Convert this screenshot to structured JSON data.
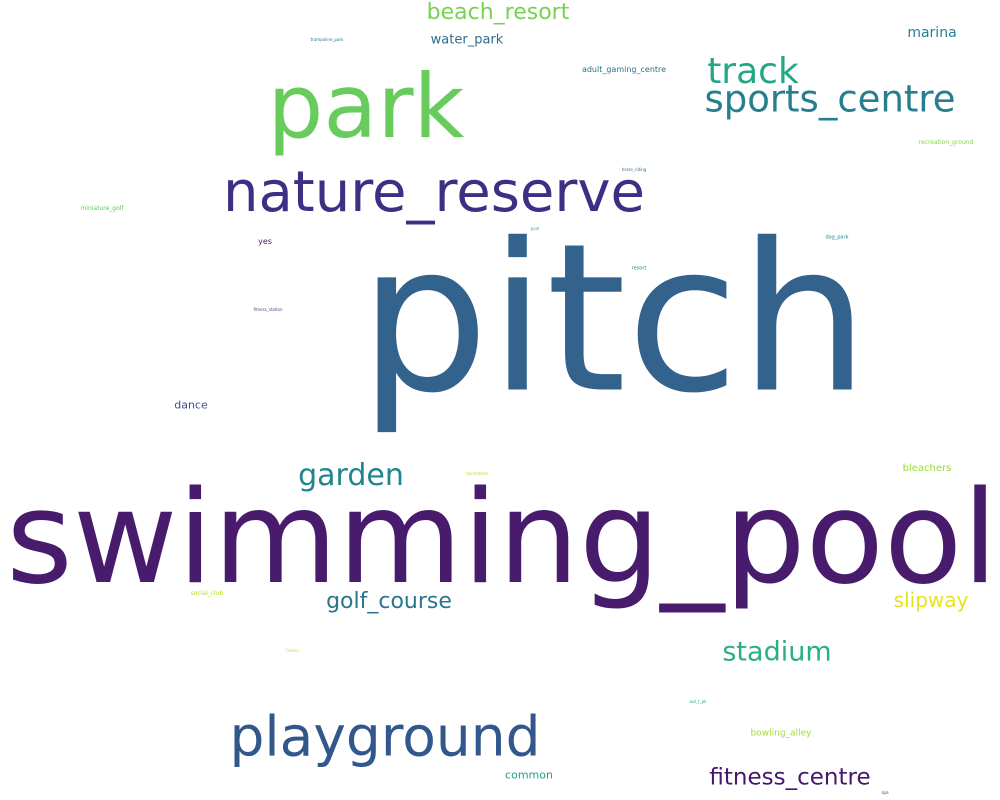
{
  "words": [
    {
      "text": "swimming_pool",
      "color": "#481b6d"
    },
    {
      "text": "pitch",
      "color": "#33628d"
    },
    {
      "text": "park",
      "color": "#67cc5c"
    },
    {
      "text": "nature_reserve",
      "color": "#3f2f84"
    },
    {
      "text": "playground",
      "color": "#31578c"
    },
    {
      "text": "sports_centre",
      "color": "#277f8e"
    },
    {
      "text": "track",
      "color": "#22a884"
    },
    {
      "text": "beach_resort",
      "color": "#7ad151"
    },
    {
      "text": "garden",
      "color": "#21858d"
    },
    {
      "text": "golf_course",
      "color": "#2a768e"
    },
    {
      "text": "stadium",
      "color": "#2ab07f"
    },
    {
      "text": "fitness_centre",
      "color": "#46186b"
    },
    {
      "text": "slipway",
      "color": "#e6e419"
    },
    {
      "text": "marina",
      "color": "#26828e"
    },
    {
      "text": "water_park",
      "color": "#2e6e8e"
    },
    {
      "text": "dance",
      "color": "#3b528b"
    },
    {
      "text": "common",
      "color": "#1fa187"
    },
    {
      "text": "bleachers",
      "color": "#9bd93c"
    },
    {
      "text": "bowling_alley",
      "color": "#a5db36"
    },
    {
      "text": "adult_gaming_centre",
      "color": "#2c718e"
    },
    {
      "text": "yes",
      "color": "#48186a"
    },
    {
      "text": "miniature_golf",
      "color": "#5ec962"
    },
    {
      "text": "recreation_ground",
      "color": "#86d549"
    },
    {
      "text": "social_club",
      "color": "#b2dd2d"
    },
    {
      "text": "trampoline_park",
      "color": "#2c728e"
    },
    {
      "text": "horse_riding",
      "color": "#2d718e"
    },
    {
      "text": "dog_park",
      "color": "#25848e"
    },
    {
      "text": "pool",
      "color": "#2ab07f"
    },
    {
      "text": "resort",
      "color": "#23898e"
    },
    {
      "text": "fitness_station",
      "color": "#3e4a89"
    },
    {
      "text": "bandstand",
      "color": "#b8de29"
    },
    {
      "text": "Casino",
      "color": "#c8e020"
    },
    {
      "text": "out_t_pk",
      "color": "#22a884"
    },
    {
      "text": "spa",
      "color": "#414487"
    }
  ]
}
